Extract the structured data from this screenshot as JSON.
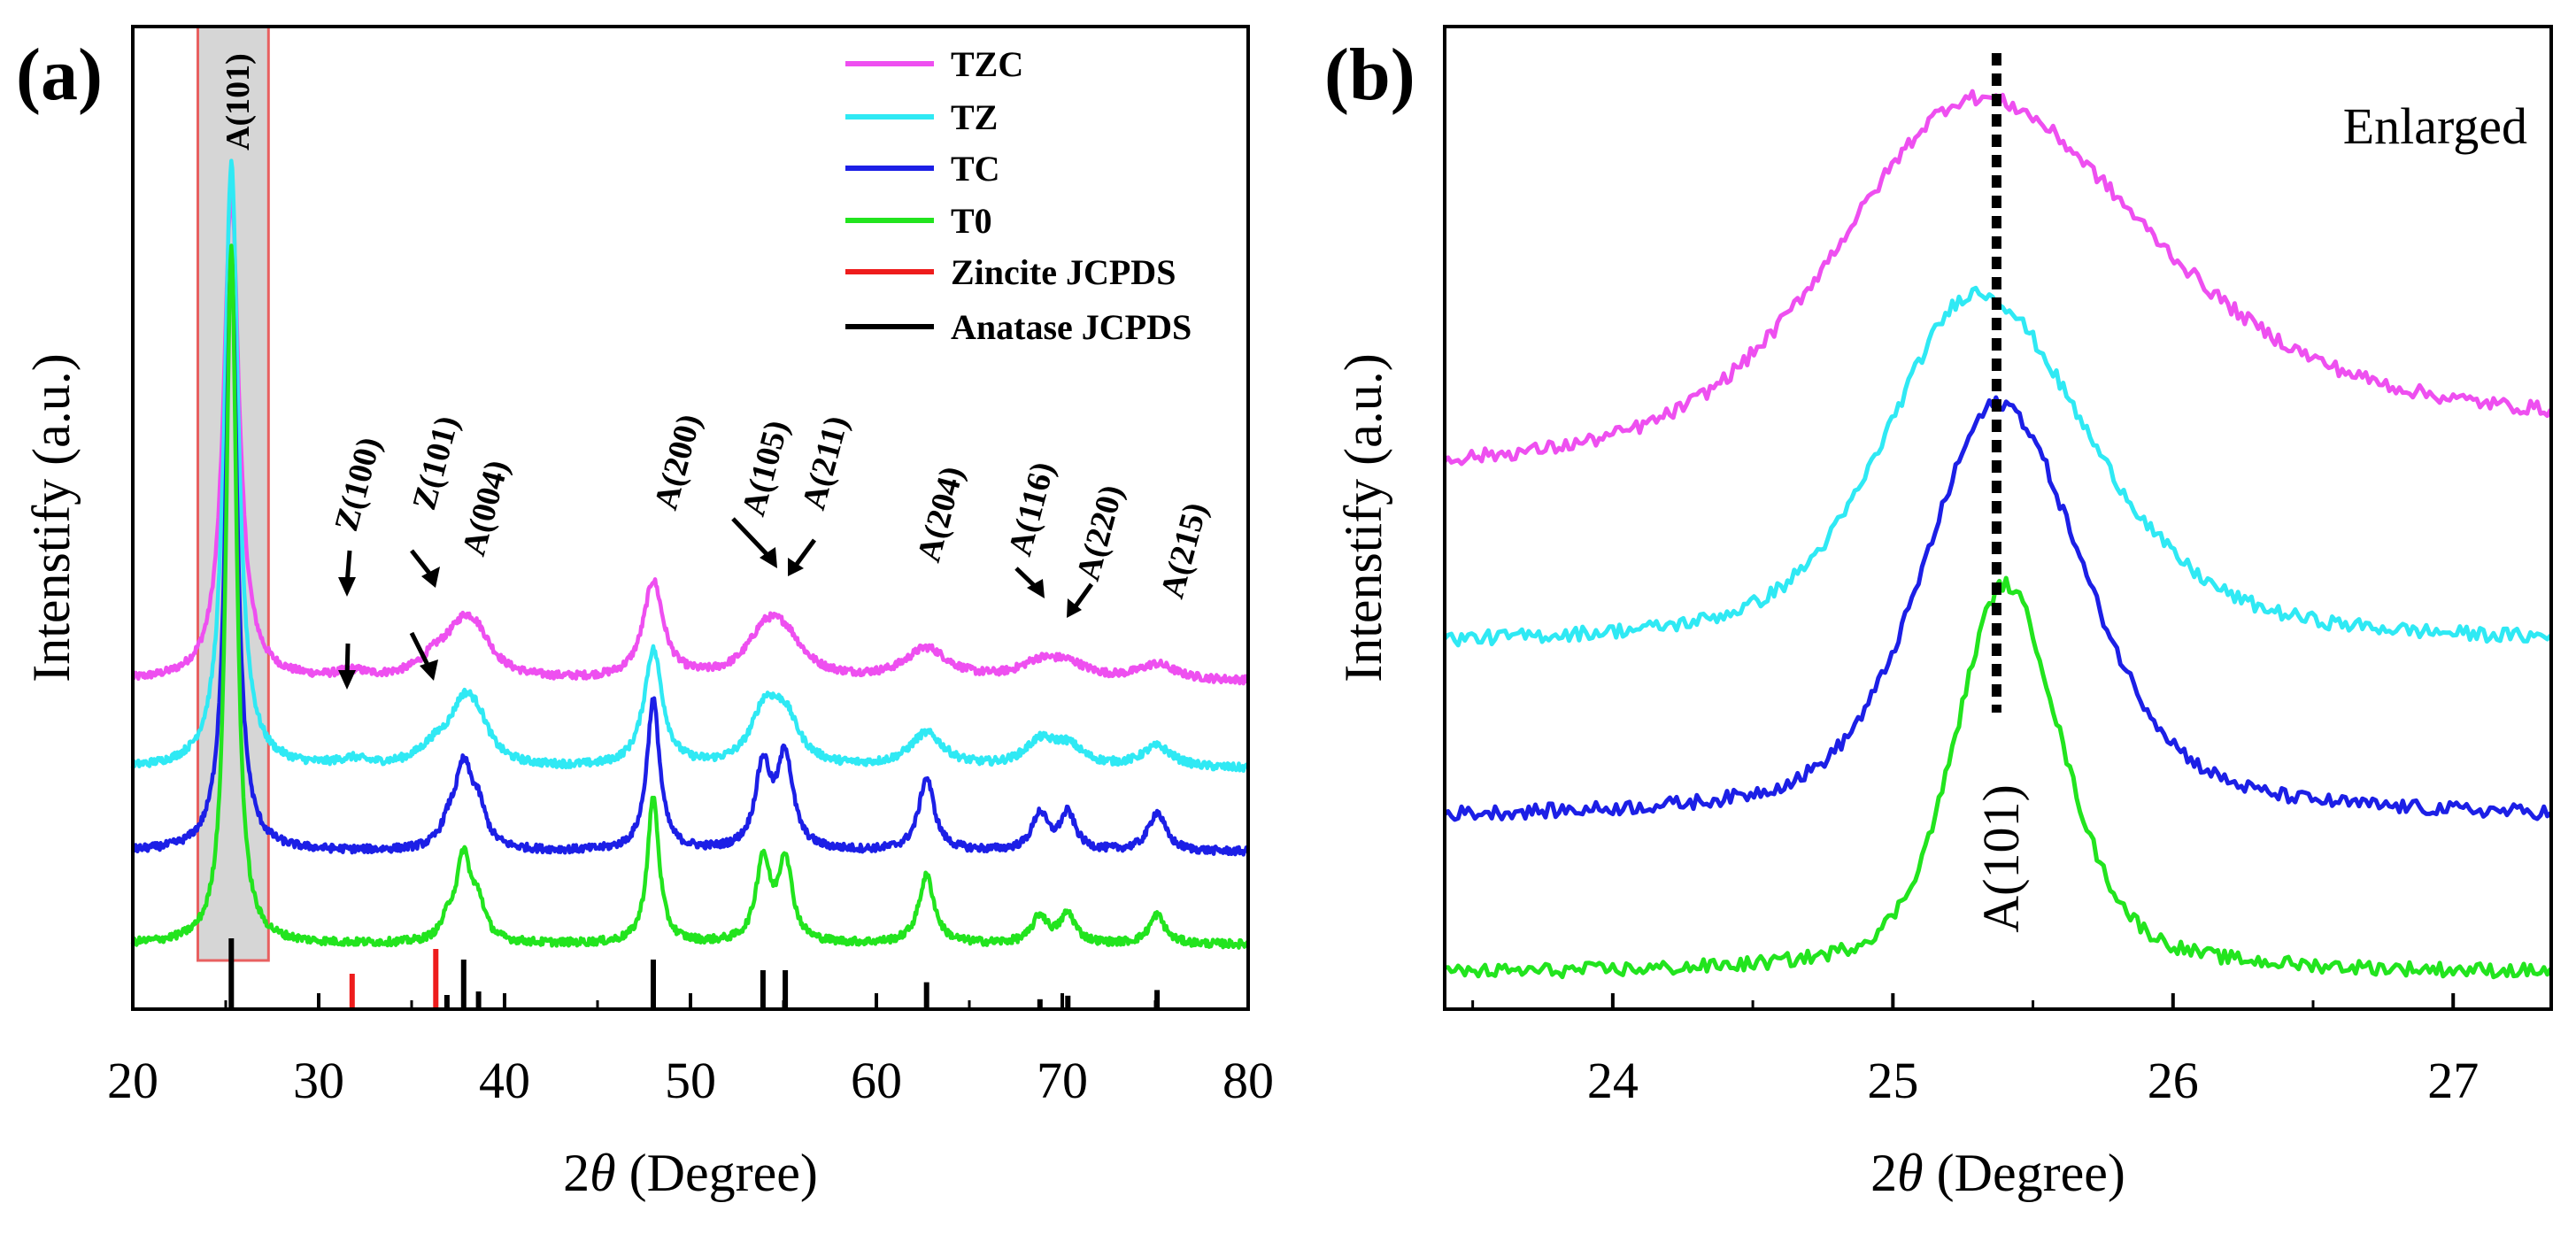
{
  "colors": {
    "TZC": "#ee4ff0",
    "TZ": "#2fe9f4",
    "TC": "#1c1fe6",
    "T0": "#22e41e",
    "zincite": "#ee1c1c",
    "anatase": "#000000",
    "highlight_fill": "#d6d6d6",
    "highlight_stroke": "#e86060"
  },
  "chart_data": [
    {
      "panel_label": "(a)",
      "type": "line",
      "xlabel_prefix": "2",
      "xlabel_symbol": "θ",
      "xlabel_suffix": " (Degree)",
      "ylabel": "Intenstify (a.u.)",
      "xlim": [
        20,
        80
      ],
      "xticks": [
        20,
        30,
        40,
        50,
        60,
        70,
        80
      ],
      "xtick_labels": [
        "20",
        "30",
        "40",
        "50",
        "60",
        "70",
        "80"
      ],
      "y_ticks_shown": false,
      "highlight_box_x": [
        23.5,
        27.3
      ],
      "series": [
        {
          "name": "TZC",
          "offset": 3.0,
          "peaks": [
            [
              25.3,
              5.0,
              0.5
            ],
            [
              31.8,
              0.07,
              0.9
            ],
            [
              36.3,
              0.18,
              1.1
            ],
            [
              37.8,
              0.45,
              1.1
            ],
            [
              38.6,
              0.25,
              1.0
            ],
            [
              48.0,
              1.0,
              0.65
            ],
            [
              54.0,
              0.42,
              1.2
            ],
            [
              55.1,
              0.35,
              1.2
            ],
            [
              62.7,
              0.32,
              1.4
            ],
            [
              68.8,
              0.16,
              1.3
            ],
            [
              70.3,
              0.14,
              1.3
            ],
            [
              75.1,
              0.16,
              1.2
            ]
          ]
        },
        {
          "name": "TZ",
          "offset": 2.1,
          "peaks": [
            [
              25.3,
              6.2,
              0.45
            ],
            [
              31.8,
              0.07,
              0.9
            ],
            [
              36.3,
              0.18,
              1.1
            ],
            [
              37.8,
              0.55,
              0.9
            ],
            [
              38.6,
              0.3,
              0.8
            ],
            [
              48.0,
              1.2,
              0.6
            ],
            [
              54.0,
              0.55,
              0.9
            ],
            [
              55.1,
              0.45,
              0.9
            ],
            [
              62.7,
              0.35,
              1.1
            ],
            [
              68.8,
              0.25,
              1.0
            ],
            [
              70.3,
              0.2,
              1.0
            ],
            [
              75.1,
              0.22,
              1.0
            ]
          ]
        },
        {
          "name": "TC",
          "offset": 1.25,
          "peaks": [
            [
              25.3,
              6.1,
              0.38
            ],
            [
              37.0,
              0.2,
              0.5
            ],
            [
              37.8,
              0.8,
              0.55
            ],
            [
              38.6,
              0.35,
              0.5
            ],
            [
              48.0,
              1.55,
              0.42
            ],
            [
              53.9,
              0.85,
              0.5
            ],
            [
              55.1,
              0.95,
              0.5
            ],
            [
              62.7,
              0.75,
              0.5
            ],
            [
              68.8,
              0.38,
              0.5
            ],
            [
              70.3,
              0.38,
              0.5
            ],
            [
              75.1,
              0.4,
              0.55
            ]
          ]
        },
        {
          "name": "T0",
          "offset": 0.3,
          "peaks": [
            [
              25.3,
              7.2,
              0.34
            ],
            [
              37.0,
              0.2,
              0.45
            ],
            [
              37.8,
              0.85,
              0.45
            ],
            [
              38.6,
              0.35,
              0.45
            ],
            [
              48.0,
              1.5,
              0.38
            ],
            [
              53.9,
              0.85,
              0.45
            ],
            [
              55.1,
              0.85,
              0.45
            ],
            [
              62.7,
              0.7,
              0.5
            ],
            [
              68.8,
              0.28,
              0.5
            ],
            [
              70.3,
              0.3,
              0.5
            ],
            [
              75.1,
              0.3,
              0.5
            ]
          ]
        }
      ],
      "reference_lines": [
        {
          "name": "Zincite JCPDS",
          "positions": [
            31.8,
            36.3
          ],
          "heights": [
            0.5,
            0.85
          ]
        },
        {
          "name": "Anatase JCPDS",
          "positions": [
            25.3,
            36.9,
            37.8,
            38.6,
            48.0,
            53.9,
            55.1,
            62.7,
            68.8,
            70.3,
            75.1
          ],
          "heights": [
            1.0,
            0.2,
            0.7,
            0.25,
            0.7,
            0.55,
            0.55,
            0.38,
            0.14,
            0.19,
            0.27
          ]
        }
      ],
      "annotations": [
        "A(101)",
        "Z(100)",
        "Z(101)",
        "A(004)",
        "A(200)",
        "A(105)",
        "A(211)",
        "A(204)",
        "A(116)",
        "A(220)",
        "A(215)"
      ],
      "legend": [
        "TZC",
        "TZ",
        "TC",
        "T0",
        "Zincite JCPDS",
        "Anatase JCPDS"
      ],
      "legend_position": "top-right"
    },
    {
      "panel_label": "(b)",
      "type": "line",
      "xlabel_prefix": "2",
      "xlabel_symbol": "θ",
      "xlabel_suffix": " (Degree)",
      "ylabel": "Intenstify (a.u.)",
      "xlim": [
        23.4,
        27.35
      ],
      "xticks": [
        24,
        25,
        26,
        27
      ],
      "xtick_labels": [
        "24",
        "25",
        "26",
        "27"
      ],
      "annotation_text": "Enlarged",
      "peak_label": "A(101)",
      "dashed_line_x": 25.37,
      "series": [
        {
          "name": "TZC",
          "peak_x": 25.3,
          "base_left": 0.6,
          "base_right": 1.1,
          "peak_height": 4.9,
          "width_left": 0.7,
          "width_right": 0.85
        },
        {
          "name": "TZ",
          "peak_x": 25.3,
          "base_left": 0.3,
          "base_right": 0.3,
          "peak_height": 4.3,
          "width_left": 0.45,
          "width_right": 0.55
        },
        {
          "name": "TC",
          "peak_x": 25.38,
          "base_left": 0.0,
          "base_right": 0.0,
          "peak_height": 4.7,
          "width_left": 0.38,
          "width_right": 0.42
        },
        {
          "name": "T0",
          "peak_x": 25.4,
          "base_left": 0.0,
          "base_right": 0.0,
          "peak_height": 4.4,
          "width_left": 0.25,
          "width_right": 0.28
        }
      ]
    }
  ]
}
